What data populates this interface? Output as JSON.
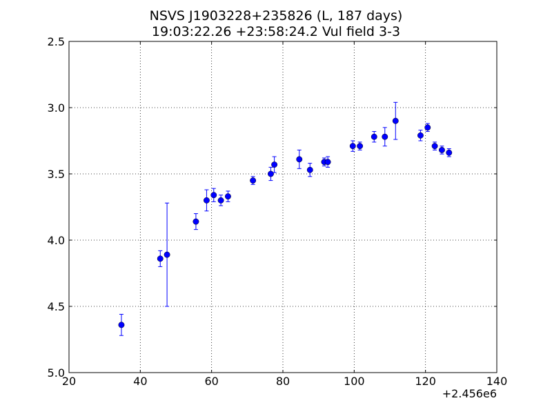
{
  "chart_data": {
    "type": "scatter",
    "title": "NSVS J1903228+235826 (L, 187 days)",
    "subtitle": "19:03:22.26 +23:58:24.2 Vul field 3-3",
    "xlabel": "",
    "ylabel": "",
    "x_offset_label": "+2.456e6",
    "xlim": [
      20,
      140
    ],
    "ylim": [
      2.5,
      5.0
    ],
    "y_inverted": true,
    "grid": true,
    "x_ticks": [
      20,
      40,
      60,
      80,
      100,
      120,
      140
    ],
    "x_tick_labels": [
      "20",
      "40",
      "60",
      "80",
      "100",
      "120",
      "140"
    ],
    "y_ticks": [
      2.5,
      3.0,
      3.5,
      4.0,
      4.5,
      5.0
    ],
    "y_tick_labels": [
      "2.5",
      "3.0",
      "3.5",
      "4.0",
      "4.5",
      "5.0"
    ],
    "marker_color": "#0000ff",
    "points": [
      {
        "x": 34.7,
        "y": 4.64,
        "err": 0.08
      },
      {
        "x": 45.6,
        "y": 4.14,
        "err": 0.06
      },
      {
        "x": 47.5,
        "y": 4.11,
        "err": 0.39
      },
      {
        "x": 55.6,
        "y": 3.86,
        "err": 0.06
      },
      {
        "x": 58.6,
        "y": 3.7,
        "err": 0.08
      },
      {
        "x": 60.6,
        "y": 3.66,
        "err": 0.05
      },
      {
        "x": 62.6,
        "y": 3.7,
        "err": 0.04
      },
      {
        "x": 64.6,
        "y": 3.67,
        "err": 0.04
      },
      {
        "x": 71.6,
        "y": 3.55,
        "err": 0.03
      },
      {
        "x": 76.6,
        "y": 3.5,
        "err": 0.05
      },
      {
        "x": 77.6,
        "y": 3.43,
        "err": 0.06
      },
      {
        "x": 84.6,
        "y": 3.39,
        "err": 0.07
      },
      {
        "x": 87.6,
        "y": 3.47,
        "err": 0.05
      },
      {
        "x": 91.6,
        "y": 3.41,
        "err": 0.03
      },
      {
        "x": 92.6,
        "y": 3.41,
        "err": 0.04
      },
      {
        "x": 99.6,
        "y": 3.29,
        "err": 0.04
      },
      {
        "x": 101.6,
        "y": 3.29,
        "err": 0.03
      },
      {
        "x": 105.6,
        "y": 3.22,
        "err": 0.04
      },
      {
        "x": 108.6,
        "y": 3.22,
        "err": 0.07
      },
      {
        "x": 111.6,
        "y": 3.1,
        "err": 0.14
      },
      {
        "x": 118.6,
        "y": 3.21,
        "err": 0.04
      },
      {
        "x": 120.6,
        "y": 3.15,
        "err": 0.03
      },
      {
        "x": 122.6,
        "y": 3.29,
        "err": 0.03
      },
      {
        "x": 124.6,
        "y": 3.32,
        "err": 0.03
      },
      {
        "x": 126.6,
        "y": 3.34,
        "err": 0.03
      }
    ]
  }
}
